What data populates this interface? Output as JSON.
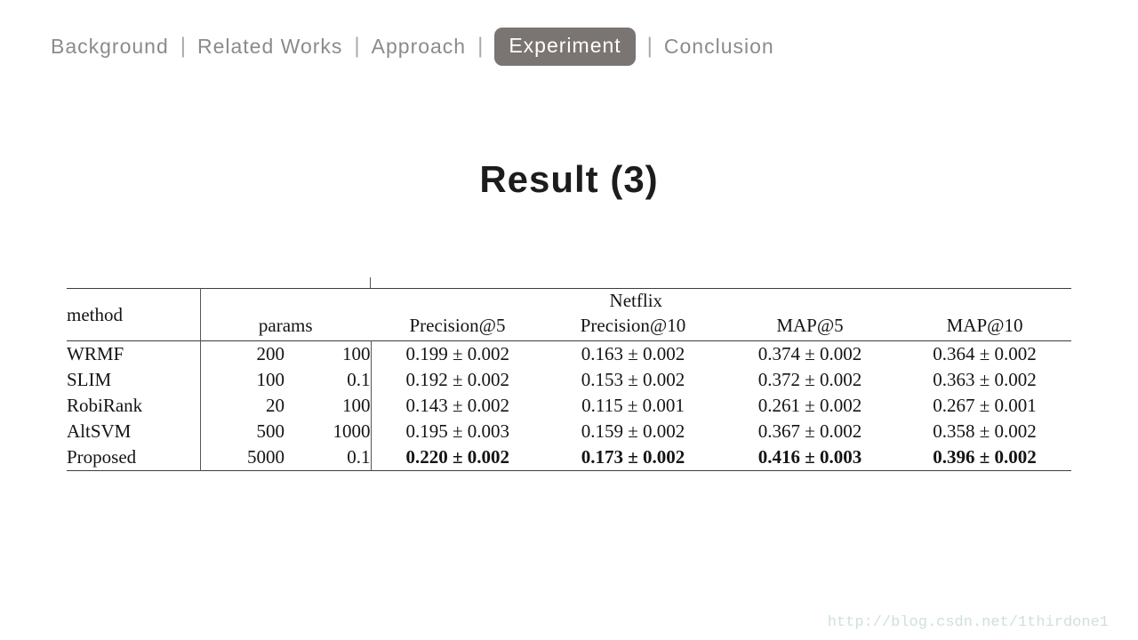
{
  "nav": {
    "separator": "|",
    "items": [
      {
        "label": "Background",
        "active": false
      },
      {
        "label": "Related Works",
        "active": false
      },
      {
        "label": "Approach",
        "active": false
      },
      {
        "label": "Experiment",
        "active": true
      },
      {
        "label": "Conclusion",
        "active": false
      }
    ],
    "active_bg_color": "#7a7472",
    "inactive_text_color": "#8b8b8b"
  },
  "title": "Result (3)",
  "table": {
    "group_header": "Netflix",
    "method_header": "method",
    "params_header": "params",
    "metric_headers": [
      "Precision@5",
      "Precision@10",
      "MAP@5",
      "MAP@10"
    ],
    "rows": [
      {
        "method": "WRMF",
        "param1": "200",
        "param2": "100",
        "metrics": [
          "0.199 ± 0.002",
          "0.163 ± 0.002",
          "0.374 ± 0.002",
          "0.364 ± 0.002"
        ],
        "bold": false
      },
      {
        "method": "SLIM",
        "param1": "100",
        "param2": "0.1",
        "metrics": [
          "0.192 ± 0.002",
          "0.153 ± 0.002",
          "0.372 ± 0.002",
          "0.363 ± 0.002"
        ],
        "bold": false
      },
      {
        "method": "RobiRank",
        "param1": "20",
        "param2": "100",
        "metrics": [
          "0.143 ± 0.002",
          "0.115 ± 0.001",
          "0.261 ± 0.002",
          "0.267 ± 0.001"
        ],
        "bold": false
      },
      {
        "method": "AltSVM",
        "param1": "500",
        "param2": "1000",
        "metrics": [
          "0.195 ± 0.003",
          "0.159 ± 0.002",
          "0.367 ± 0.002",
          "0.358 ± 0.002"
        ],
        "bold": false
      },
      {
        "method": "Proposed",
        "param1": "5000",
        "param2": "0.1",
        "metrics": [
          "0.220 ± 0.002",
          "0.173 ± 0.002",
          "0.416 ± 0.003",
          "0.396 ± 0.002"
        ],
        "bold": true
      }
    ]
  },
  "watermark": {
    "text": "http://blog.csdn.net/1thirdone1",
    "color": "#cfe0dd"
  }
}
